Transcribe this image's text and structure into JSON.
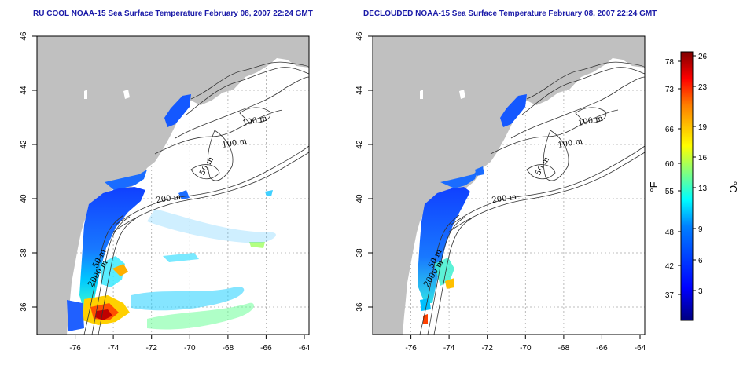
{
  "maps": [
    {
      "title": "RU COOL NOAA-15 Sea Surface Temperature February 08, 2007 22:24 GMT",
      "contour_labels": [
        "100 m",
        "100 m",
        "50 m",
        "200 m",
        "50 m",
        "2000 m"
      ]
    },
    {
      "title": "DECLOUDED NOAA-15 Sea Surface Temperature February 08, 2007 22:24 GMT",
      "contour_labels": [
        "100 m",
        "100 m",
        "50 m",
        "200 m",
        "50 m",
        "2000 m"
      ]
    }
  ],
  "axes": {
    "x_ticks": [
      "-76",
      "-74",
      "-72",
      "-70",
      "-68",
      "-66",
      "-64"
    ],
    "y_ticks": [
      "46",
      "44",
      "42",
      "40",
      "38",
      "36"
    ],
    "lon_range": [
      -77,
      -63
    ],
    "lat_range": [
      35,
      46
    ]
  },
  "colorbar": {
    "f_ticks": [
      "78",
      "73",
      "66",
      "60",
      "55",
      "48",
      "42",
      "37"
    ],
    "c_ticks": [
      "26",
      "23",
      "19",
      "16",
      "13",
      "9",
      "6",
      "3"
    ],
    "f_label": "°F",
    "c_label": "°C",
    "colors": [
      "#00007f",
      "#0000ff",
      "#0080ff",
      "#00ffff",
      "#80ff80",
      "#ffff00",
      "#ff8000",
      "#ff0000",
      "#7f0000"
    ]
  },
  "colors": {
    "title": "#1a1aa8",
    "land": "#c0c0c0",
    "grid": "#a8a8a8"
  }
}
